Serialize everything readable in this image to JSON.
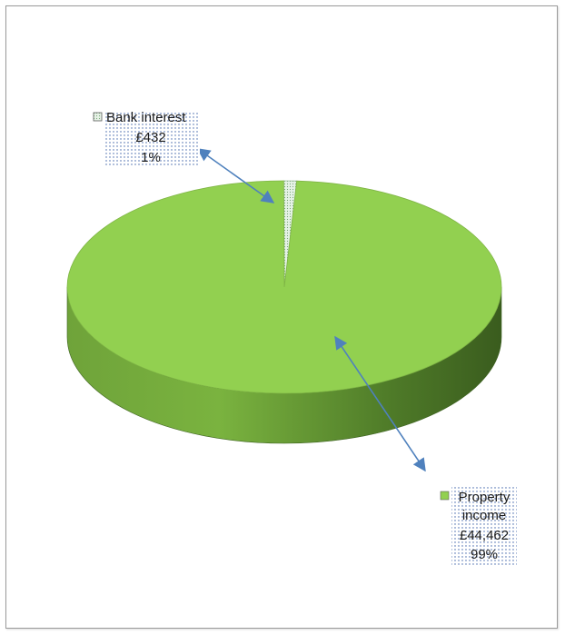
{
  "chart_data": {
    "type": "pie",
    "style": "3d",
    "title": "",
    "slices": [
      {
        "name": "Property income",
        "value_label": "£44,462",
        "percent_label": "99%",
        "value": 44462,
        "percent": 99,
        "color": "#92d050"
      },
      {
        "name": "Bank interest",
        "value_label": "£432",
        "percent_label": "1%",
        "value": 432,
        "percent": 1,
        "color": "#d8ecd8",
        "pattern": "dotted"
      }
    ],
    "labels": {
      "bank": {
        "lines": [
          "Bank interest",
          "£432",
          "1%"
        ]
      },
      "property": {
        "lines": [
          "Property",
          "income",
          "£44,462",
          "99%"
        ]
      }
    },
    "leader_color": "#4f81bd"
  }
}
